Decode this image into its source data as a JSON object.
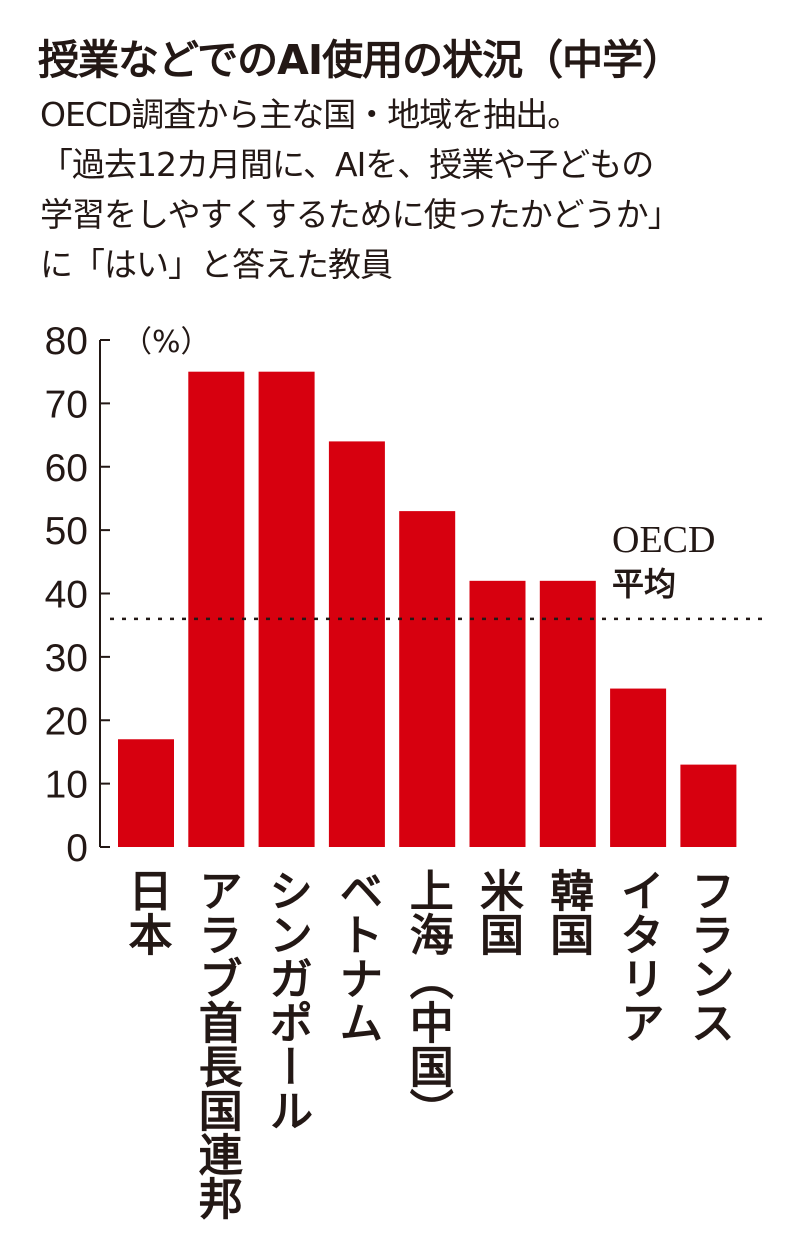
{
  "colors": {
    "bar": "#d7000f",
    "text": "#231815"
  },
  "header": {
    "title": "授業などでのAI使用の状況（中学）",
    "lines": [
      "OECD調査から主な国・地域を抽出。",
      "「過去12カ月間に、AIを、授業や子どもの",
      "学習をしやすくするために使ったかどうか」",
      "に「はい」と答えた教員"
    ]
  },
  "chart_data": {
    "type": "bar",
    "title": "授業などでのAI使用の状況（中学）",
    "ylabel": "（%）",
    "ylim": [
      0,
      80
    ],
    "yticks": [
      0,
      10,
      20,
      30,
      40,
      50,
      60,
      70,
      80
    ],
    "categories": [
      "日本",
      "アラブ首長国連邦",
      "シンガポール",
      "ベトナム",
      "上海（中国）",
      "米国",
      "韓国",
      "イタリア",
      "フランス"
    ],
    "values": [
      17,
      75,
      75,
      64,
      53,
      42,
      42,
      25,
      13
    ],
    "reference_line": {
      "value": 36,
      "label_lines": [
        "OECD",
        "平均"
      ]
    }
  }
}
